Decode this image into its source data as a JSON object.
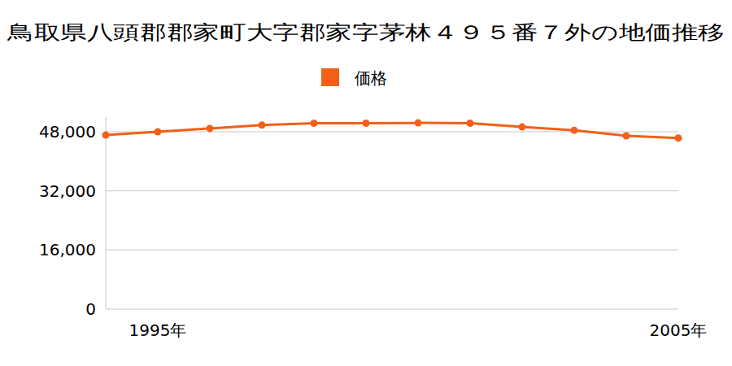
{
  "chart_data": {
    "type": "line",
    "title": "鳥取県八頭郡郡家町大字郡家字茅林４９５番７外の地価推移",
    "categories": [
      null,
      "1995年",
      null,
      null,
      null,
      null,
      null,
      null,
      null,
      null,
      null,
      "2005年"
    ],
    "series": [
      {
        "name": "価格",
        "color": "#f26018",
        "marker": "circle",
        "values": [
          47100,
          48000,
          48900,
          49800,
          50300,
          50300,
          50400,
          50300,
          49300,
          48400,
          46900,
          46300
        ]
      }
    ],
    "ylim": [
      0,
      52000
    ],
    "yticks": [
      0,
      {
        "value": 16000,
        "label": "16,000"
      },
      {
        "value": 32000,
        "label": "32,000"
      },
      {
        "value": 48000,
        "label": "48,000"
      }
    ],
    "grid": true,
    "legend": "top"
  }
}
